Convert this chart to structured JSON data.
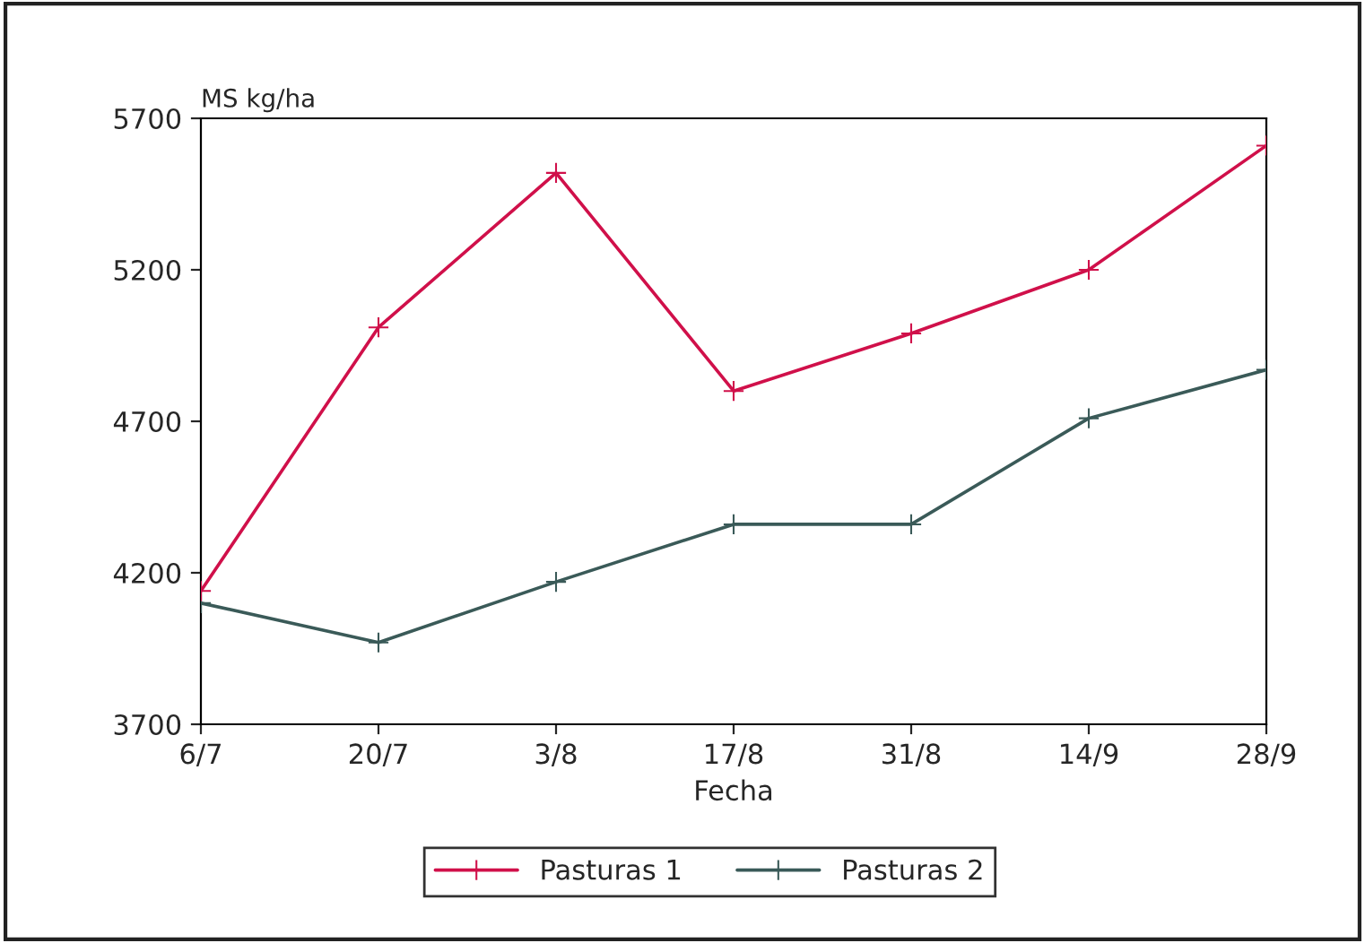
{
  "chart_data": {
    "type": "line",
    "ylabel": "MS kg/ha",
    "xlabel": "Fecha",
    "categories": [
      "6/7",
      "20/7",
      "3/8",
      "17/8",
      "31/8",
      "14/9",
      "28/9"
    ],
    "series": [
      {
        "name": "Pasturas 1",
        "color": "#d0104a",
        "values": [
          4140,
          5010,
          5520,
          4800,
          4990,
          5200,
          5610
        ]
      },
      {
        "name": "Pasturas 2",
        "color": "#3a5a58",
        "values": [
          4100,
          3970,
          4170,
          4360,
          4360,
          4710,
          4870
        ]
      }
    ],
    "ylim": [
      3700,
      5700
    ],
    "yticks": [
      3700,
      4200,
      4700,
      5200,
      5700
    ],
    "grid": false,
    "legend": "bottom",
    "marker": "cross",
    "line_style": "solid"
  }
}
